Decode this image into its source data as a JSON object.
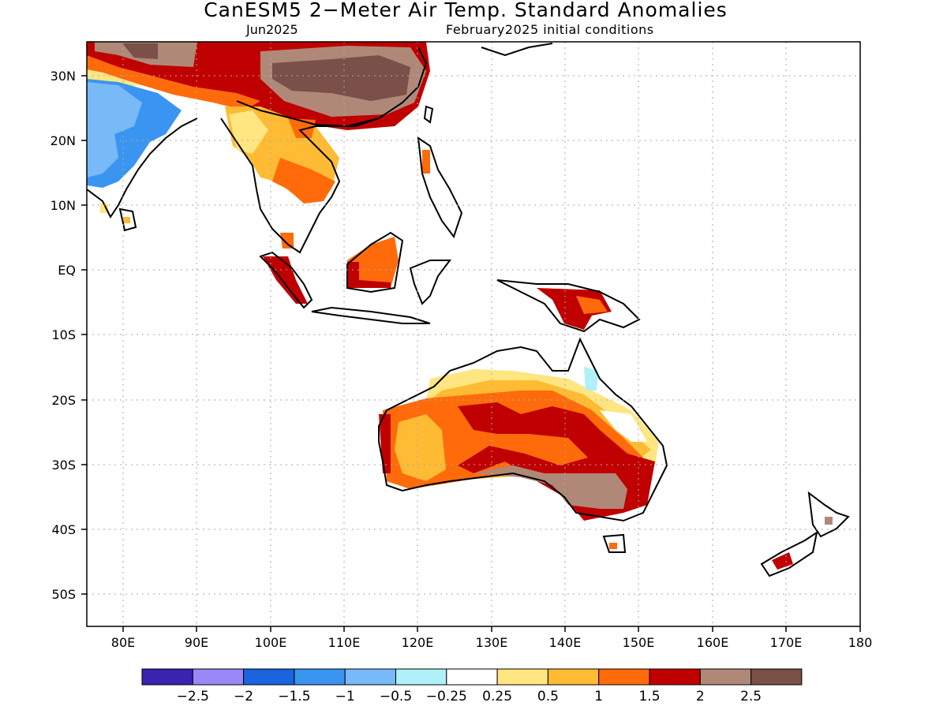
{
  "title": "CanESM5 2−Meter Air Temp. Standard Anomalies",
  "subtitle_left": "Jun2025",
  "subtitle_right": "February2025 initial conditions",
  "lat_labels": [
    "30N",
    "20N",
    "10N",
    "EQ",
    "10S",
    "20S",
    "30S",
    "40S",
    "50S"
  ],
  "lon_labels": [
    "80E",
    "90E",
    "100E",
    "110E",
    "120E",
    "130E",
    "140E",
    "150E",
    "160E",
    "170E",
    "180"
  ],
  "colorbar": {
    "colors": [
      "#3a23b0",
      "#9b87f5",
      "#1a64e0",
      "#3a95f0",
      "#78b9f8",
      "#b0f0f8",
      "#ffffff",
      "#ffe680",
      "#ffbb33",
      "#ff6b0b",
      "#c00000",
      "#b08878",
      "#7a5048"
    ],
    "labels": [
      "−2.5",
      "−2",
      "−1.5",
      "−1",
      "−0.5",
      "−0.25",
      "0.25",
      "0.5",
      "1",
      "1.5",
      "2",
      "2.5"
    ]
  },
  "map": {
    "lon_range": [
      75,
      180
    ],
    "lat_range": [
      -55,
      35
    ],
    "grid": "dotted"
  }
}
